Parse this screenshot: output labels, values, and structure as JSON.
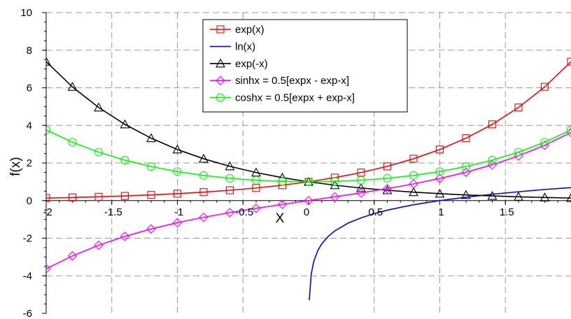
{
  "chart_data": {
    "type": "line",
    "title": "",
    "xlabel": "X",
    "ylabel": "f(x)",
    "xlim": [
      -2,
      2
    ],
    "ylim": [
      -6,
      10
    ],
    "x_ticks": [
      -2,
      -1.5,
      -1,
      -0.5,
      0,
      0.5,
      1,
      1.5
    ],
    "x_tick_labels": [
      "-2",
      "-1.5",
      "-1",
      "-0.5",
      "0",
      "0.5",
      "1",
      "1.5"
    ],
    "y_ticks": [
      -6,
      -4,
      -2,
      0,
      2,
      4,
      6,
      8,
      10
    ],
    "y_tick_labels": [
      "-6",
      "-4",
      "-2",
      "0",
      "2",
      "4",
      "6",
      "8",
      "10"
    ],
    "grid": true,
    "legend_position": "top-center",
    "series": [
      {
        "name": "exp(x)",
        "color": "#ff0000",
        "marker": "square",
        "x": [
          -2,
          -1.8,
          -1.6,
          -1.4,
          -1.2,
          -1,
          -0.8,
          -0.6,
          -0.4,
          -0.2,
          0,
          0.2,
          0.4,
          0.6,
          0.8,
          1,
          1.2,
          1.4,
          1.6,
          1.8,
          2
        ],
        "y": [
          0.135,
          0.165,
          0.202,
          0.247,
          0.301,
          0.368,
          0.449,
          0.549,
          0.67,
          0.819,
          1,
          1.221,
          1.492,
          1.822,
          2.226,
          2.718,
          3.32,
          4.055,
          4.953,
          6.05,
          7.389
        ]
      },
      {
        "name": "ln(x)",
        "color": "#0000ff",
        "marker": "none",
        "x": [
          0.005,
          0.02,
          0.04,
          0.07,
          0.1,
          0.15,
          0.2,
          0.3,
          0.4,
          0.5,
          0.6,
          0.7,
          0.8,
          0.9,
          1,
          1.2,
          1.4,
          1.6,
          1.8,
          2
        ],
        "y": [
          -5.3,
          -3.91,
          -3.22,
          -2.66,
          -2.3,
          -1.9,
          -1.61,
          -1.2,
          -0.92,
          -0.69,
          -0.51,
          -0.36,
          -0.22,
          -0.11,
          0,
          0.18,
          0.34,
          0.47,
          0.59,
          0.69
        ]
      },
      {
        "name": "exp(-x)",
        "color": "#000000",
        "marker": "triangle",
        "x": [
          -2,
          -1.8,
          -1.6,
          -1.4,
          -1.2,
          -1,
          -0.8,
          -0.6,
          -0.4,
          -0.2,
          0,
          0.2,
          0.4,
          0.6,
          0.8,
          1,
          1.2,
          1.4,
          1.6,
          1.8,
          2
        ],
        "y": [
          7.389,
          6.05,
          4.953,
          4.055,
          3.32,
          2.718,
          2.226,
          1.822,
          1.492,
          1.221,
          1,
          0.819,
          0.67,
          0.549,
          0.449,
          0.368,
          0.301,
          0.247,
          0.202,
          0.165,
          0.135
        ]
      },
      {
        "name": "sinhx = 0.5[expx - exp-x]",
        "color": "#ff00ff",
        "marker": "diamond",
        "x": [
          -2,
          -1.8,
          -1.6,
          -1.4,
          -1.2,
          -1,
          -0.8,
          -0.6,
          -0.4,
          -0.2,
          0,
          0.2,
          0.4,
          0.6,
          0.8,
          1,
          1.2,
          1.4,
          1.6,
          1.8,
          2
        ],
        "y": [
          -3.627,
          -2.942,
          -2.376,
          -1.904,
          -1.509,
          -1.175,
          -0.888,
          -0.637,
          -0.411,
          -0.201,
          0,
          0.201,
          0.411,
          0.637,
          0.888,
          1.175,
          1.509,
          1.904,
          2.376,
          2.942,
          3.627
        ]
      },
      {
        "name": "coshx = 0.5[expx + exp-x]",
        "color": "#00ff00",
        "marker": "circle",
        "x": [
          -2,
          -1.8,
          -1.6,
          -1.4,
          -1.2,
          -1,
          -0.8,
          -0.6,
          -0.4,
          -0.2,
          0,
          0.2,
          0.4,
          0.6,
          0.8,
          1,
          1.2,
          1.4,
          1.6,
          1.8,
          2
        ],
        "y": [
          3.762,
          3.107,
          2.577,
          2.151,
          1.811,
          1.543,
          1.337,
          1.185,
          1.081,
          1.02,
          1,
          1.02,
          1.081,
          1.185,
          1.337,
          1.543,
          1.811,
          2.151,
          2.577,
          3.107,
          3.762
        ]
      }
    ]
  }
}
